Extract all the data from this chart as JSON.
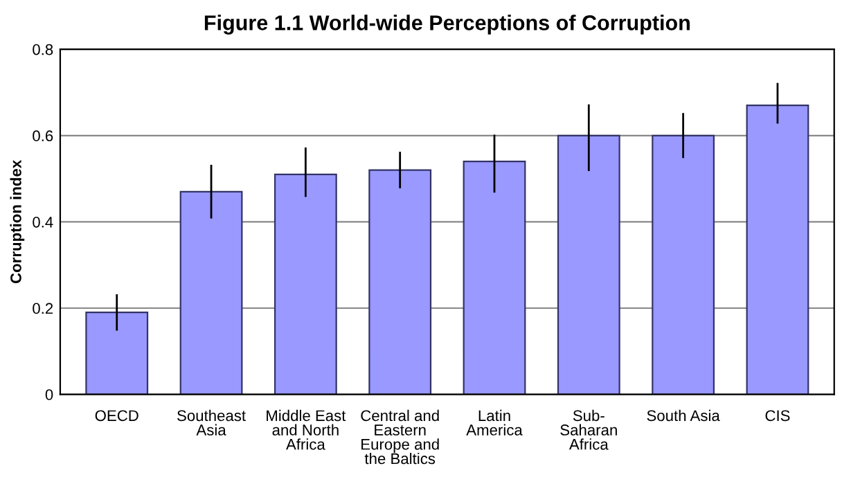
{
  "chart_data": {
    "type": "bar",
    "title": "Figure 1.1 World-wide Perceptions of Corruption",
    "ylabel": "Corruption index",
    "categories": [
      "OECD",
      "Southeast\nAsia",
      "Middle East\nand North\nAfrica",
      "Central and\nEastern\nEurope and\nthe Baltics",
      "Latin\nAmerica",
      "Sub-\nSaharan\nAfrica",
      "South Asia",
      "CIS"
    ],
    "values": [
      0.19,
      0.47,
      0.51,
      0.52,
      0.54,
      0.6,
      0.6,
      0.67
    ],
    "errors": [
      [
        0.15,
        0.23
      ],
      [
        0.41,
        0.53
      ],
      [
        0.46,
        0.57
      ],
      [
        0.48,
        0.56
      ],
      [
        0.47,
        0.6
      ],
      [
        0.52,
        0.67
      ],
      [
        0.55,
        0.65
      ],
      [
        0.63,
        0.72
      ]
    ],
    "color": "#9999ff",
    "ylim": [
      0,
      0.8
    ],
    "yticks": [
      0,
      0.2,
      0.4,
      0.6,
      0.8
    ],
    "grid": "y",
    "legend": false
  }
}
